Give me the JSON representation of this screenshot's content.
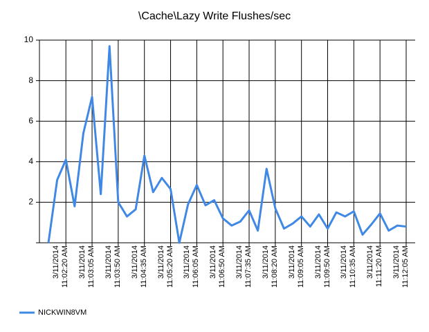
{
  "chart_data": {
    "type": "line",
    "title": "\\Cache\\Lazy Write Flushes/sec",
    "categories": [
      null,
      null,
      "3/11/2014\n11:02:20 AM",
      null,
      null,
      "3/11/2014\n11:03:05 AM",
      null,
      null,
      "3/11/2014\n11:03:50 AM",
      null,
      null,
      "3/11/2014\n11:04:35 AM",
      null,
      null,
      "3/11/2014\n11:05:20 AM",
      null,
      null,
      "3/11/2014\n11:06:05 AM",
      null,
      null,
      "3/11/2014\n11:06:50 AM",
      null,
      null,
      "3/11/2014\n11:07:35 AM",
      null,
      null,
      "3/11/2014\n11:08:20 AM",
      null,
      null,
      "3/11/2014\n11:09:05 AM",
      null,
      null,
      "3/11/2014\n11:09:50 AM",
      null,
      null,
      "3/11/2014\n11:10:35 AM",
      null,
      null,
      "3/11/2014\n11:11:20 AM",
      null,
      null,
      "3/11/2014\n11:12:05 AM"
    ],
    "series": [
      {
        "name": "NICKWIN8VM",
        "color": "#3f88e5",
        "values": [
          0,
          3.1,
          4.1,
          1.8,
          5.4,
          7.2,
          2.4,
          9.7,
          2.0,
          1.3,
          1.65,
          4.3,
          2.5,
          3.2,
          2.65,
          0,
          1.9,
          2.85,
          1.85,
          2.1,
          1.2,
          0.85,
          1.05,
          1.6,
          0.6,
          3.65,
          1.7,
          0.7,
          0.95,
          1.3,
          0.8,
          1.4,
          0.7,
          1.5,
          1.3,
          1.55,
          0.4,
          0.9,
          1.45,
          0.6,
          0.85,
          0.8
        ]
      }
    ],
    "ylim": [
      0,
      10
    ],
    "yticks": [
      2,
      4,
      6,
      8,
      10
    ],
    "grid": true,
    "legend": "bottom-left"
  }
}
